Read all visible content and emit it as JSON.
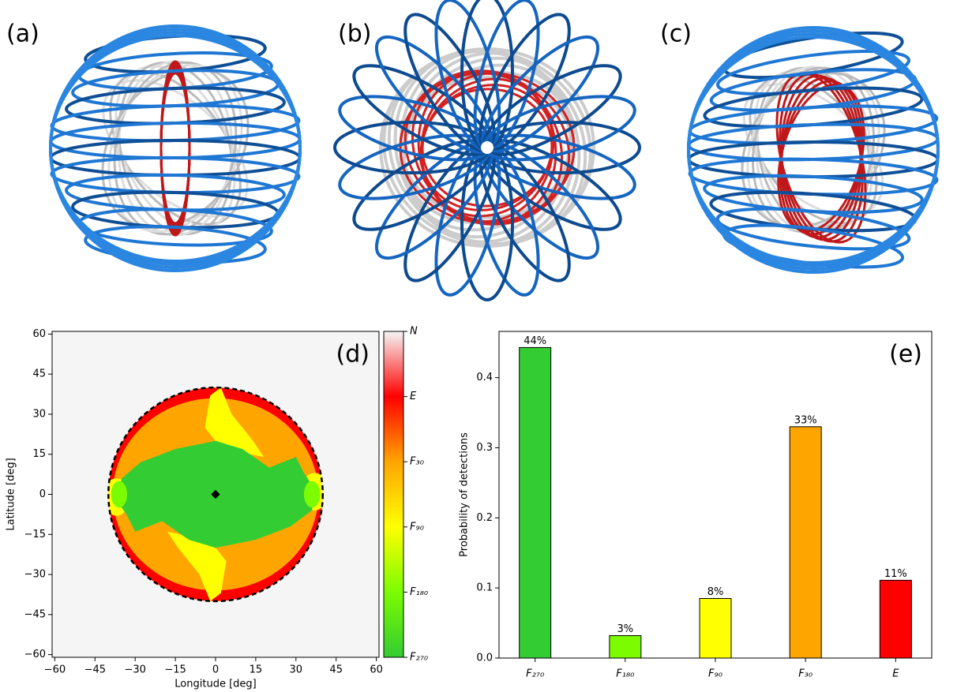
{
  "figure": {
    "panel_labels": [
      "(a)",
      "(b)",
      "(c)"
    ]
  },
  "chart_data": [
    {
      "type": "map",
      "panel_label": "(d)",
      "xlabel": "Longitude [deg]",
      "ylabel": "Latitude [deg]",
      "xlim": [
        -61,
        61
      ],
      "ylim": [
        -61,
        61
      ],
      "xticks": [
        {
          "value": -60,
          "label": "−60"
        },
        {
          "value": -45,
          "label": "−45"
        },
        {
          "value": -30,
          "label": "−30"
        },
        {
          "value": -15,
          "label": "−15"
        },
        0,
        15,
        30,
        45,
        60
      ],
      "yticks": [
        {
          "value": -60,
          "label": "−60"
        },
        {
          "value": -45,
          "label": "−45"
        },
        {
          "value": -30,
          "label": "−30"
        },
        {
          "value": -15,
          "label": "−15"
        },
        0,
        15,
        30,
        45,
        60
      ],
      "circle_radius": 40,
      "marker": [
        0,
        0
      ],
      "colorbar": {
        "lim": [
          0,
          5
        ],
        "ticks": [
          {
            "value": 0,
            "label": "F₂₇₀"
          },
          {
            "value": 1,
            "label": "F₁₈₀"
          },
          {
            "value": 2,
            "label": "F₉₀"
          },
          {
            "value": 3,
            "label": "F₃₀"
          },
          {
            "value": 4,
            "label": "E"
          },
          {
            "value": 5,
            "label": "N"
          }
        ],
        "colors": [
          "#33cc33",
          "#7cfc00",
          "#ffff00",
          "#ffa500",
          "#ff0000",
          "#f5f5f5"
        ]
      }
    },
    {
      "type": "bar",
      "panel_label": "(e)",
      "ylabel": "Probability of detections",
      "categories": [
        "F₂₇₀",
        "F₁₈₀",
        "F₉₀",
        "F₃₀",
        "E"
      ],
      "values": [
        0.443,
        0.032,
        0.085,
        0.33,
        0.111
      ],
      "value_labels": [
        "44%",
        "3%",
        "8%",
        "33%",
        "11%"
      ],
      "colors": [
        "#33cc33",
        "#7cfc00",
        "#ffff00",
        "#ffa500",
        "#ff0000"
      ],
      "ylim": [
        0,
        0.466
      ],
      "yticks": [
        {
          "value": 0,
          "label": "0.0"
        },
        0.1,
        0.2,
        0.3,
        0.4
      ]
    }
  ]
}
